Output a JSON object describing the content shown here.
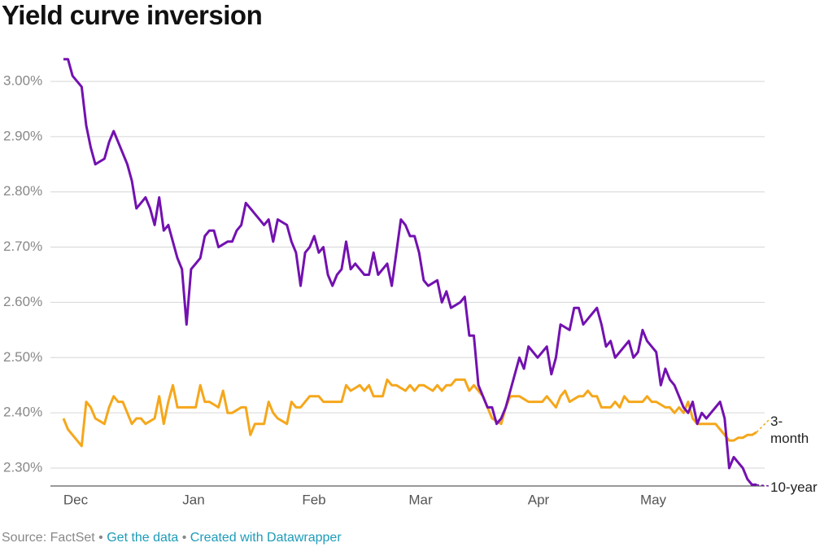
{
  "chart_data": {
    "type": "line",
    "title": "Yield curve inversion",
    "x_labels": [
      "Dec",
      "Jan",
      "Feb",
      "Mar",
      "Apr",
      "May"
    ],
    "ylim": [
      2.27,
      3.04
    ],
    "yticks": [
      {
        "value": 2.3,
        "label": "2.30%"
      },
      {
        "value": 2.4,
        "label": "2.40%"
      },
      {
        "value": 2.5,
        "label": "2.50%"
      },
      {
        "value": 2.6,
        "label": "2.60%"
      },
      {
        "value": 2.7,
        "label": "2.70%"
      },
      {
        "value": 2.8,
        "label": "2.80%"
      },
      {
        "value": 2.9,
        "label": "2.90%"
      },
      {
        "value": 3.0,
        "label": "3.00%"
      }
    ],
    "grid": true,
    "series": [
      {
        "name": "3-month",
        "color": "#f5a71b",
        "values": [
          2.39,
          2.37,
          2.36,
          2.35,
          2.34,
          2.42,
          2.41,
          2.39,
          2.385,
          2.38,
          2.41,
          2.43,
          2.42,
          2.42,
          2.4,
          2.38,
          2.39,
          2.39,
          2.38,
          2.385,
          2.39,
          2.43,
          2.38,
          2.42,
          2.45,
          2.41,
          2.41,
          2.41,
          2.41,
          2.41,
          2.45,
          2.42,
          2.42,
          2.415,
          2.41,
          2.44,
          2.4,
          2.4,
          2.405,
          2.41,
          2.41,
          2.36,
          2.38,
          2.38,
          2.38,
          2.42,
          2.4,
          2.39,
          2.385,
          2.38,
          2.42,
          2.41,
          2.41,
          2.42,
          2.43,
          2.43,
          2.43,
          2.42,
          2.42,
          2.42,
          2.42,
          2.42,
          2.45,
          2.44,
          2.445,
          2.45,
          2.44,
          2.45,
          2.43,
          2.43,
          2.43,
          2.46,
          2.45,
          2.45,
          2.445,
          2.44,
          2.45,
          2.44,
          2.45,
          2.45,
          2.445,
          2.44,
          2.45,
          2.44,
          2.45,
          2.45,
          2.46,
          2.46,
          2.46,
          2.44,
          2.45,
          2.44,
          2.43,
          2.41,
          2.39,
          2.385,
          2.38,
          2.41,
          2.43,
          2.43,
          2.43,
          2.425,
          2.42,
          2.42,
          2.42,
          2.42,
          2.43,
          2.42,
          2.41,
          2.43,
          2.44,
          2.42,
          2.425,
          2.43,
          2.43,
          2.44,
          2.43,
          2.43,
          2.41,
          2.41,
          2.41,
          2.42,
          2.41,
          2.43,
          2.42,
          2.42,
          2.42,
          2.42,
          2.43,
          2.42,
          2.42,
          2.415,
          2.41,
          2.41,
          2.4,
          2.41,
          2.4,
          2.42,
          2.39,
          2.38,
          2.38,
          2.38,
          2.38,
          2.38,
          2.37,
          2.36,
          2.35,
          2.35,
          2.355,
          2.355,
          2.36,
          2.36,
          2.365
        ]
      },
      {
        "name": "10-year",
        "color": "#7311b0",
        "values": [
          3.04,
          3.04,
          3.01,
          3.0,
          2.99,
          2.92,
          2.88,
          2.85,
          2.855,
          2.86,
          2.89,
          2.91,
          2.89,
          2.87,
          2.85,
          2.82,
          2.77,
          2.78,
          2.79,
          2.77,
          2.74,
          2.79,
          2.73,
          2.74,
          2.71,
          2.68,
          2.66,
          2.56,
          2.66,
          2.67,
          2.68,
          2.72,
          2.73,
          2.73,
          2.7,
          2.705,
          2.71,
          2.71,
          2.73,
          2.74,
          2.78,
          2.77,
          2.76,
          2.75,
          2.74,
          2.75,
          2.71,
          2.75,
          2.745,
          2.74,
          2.71,
          2.69,
          2.63,
          2.69,
          2.7,
          2.72,
          2.69,
          2.7,
          2.65,
          2.63,
          2.65,
          2.66,
          2.71,
          2.66,
          2.67,
          2.66,
          2.65,
          2.65,
          2.69,
          2.65,
          2.66,
          2.67,
          2.63,
          2.69,
          2.75,
          2.74,
          2.72,
          2.72,
          2.69,
          2.64,
          2.63,
          2.635,
          2.64,
          2.6,
          2.62,
          2.59,
          2.595,
          2.6,
          2.61,
          2.54,
          2.54,
          2.45,
          2.43,
          2.41,
          2.41,
          2.38,
          2.39,
          2.41,
          2.44,
          2.47,
          2.5,
          2.48,
          2.52,
          2.51,
          2.5,
          2.51,
          2.52,
          2.47,
          2.5,
          2.56,
          2.555,
          2.55,
          2.59,
          2.59,
          2.56,
          2.57,
          2.58,
          2.59,
          2.56,
          2.52,
          2.53,
          2.5,
          2.51,
          2.52,
          2.53,
          2.5,
          2.51,
          2.55,
          2.53,
          2.52,
          2.51,
          2.45,
          2.48,
          2.46,
          2.45,
          2.43,
          2.41,
          2.4,
          2.42,
          2.38,
          2.4,
          2.39,
          2.4,
          2.41,
          2.42,
          2.39,
          2.3,
          2.32,
          2.31,
          2.3,
          2.28,
          2.27,
          2.27
        ]
      }
    ]
  },
  "footer": {
    "source": "Source: FactSet",
    "data_link": "Get the data",
    "credit_link": "Created with Datawrapper"
  }
}
